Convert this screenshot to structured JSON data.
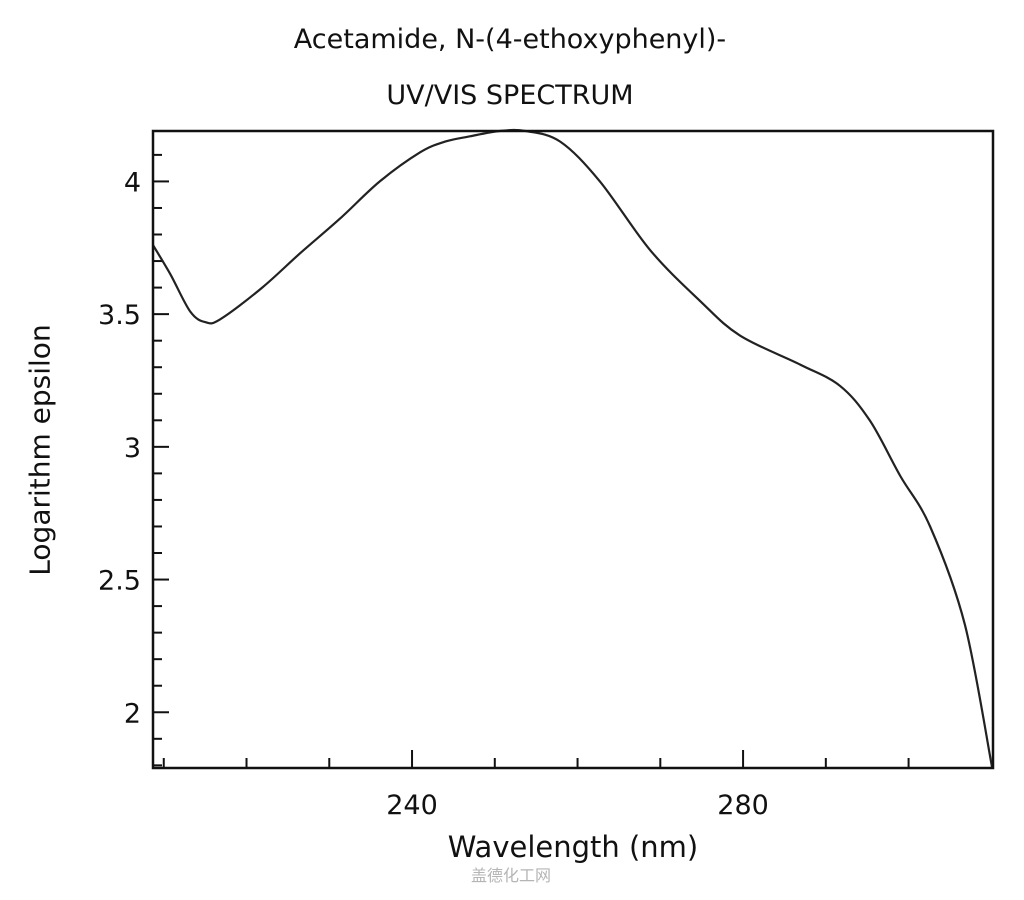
{
  "title": {
    "line1": "Acetamide, N-(4-ethoxyphenyl)-",
    "line2": "UV/VIS SPECTRUM"
  },
  "axes": {
    "xlabel": "Wavelength (nm)",
    "ylabel": "Logarithm epsilon"
  },
  "watermark": "盖德化工网",
  "chart_data": {
    "type": "line",
    "title": "Acetamide, N-(4-ethoxyphenyl)- UV/VIS SPECTRUM",
    "xlabel": "Wavelength (nm)",
    "ylabel": "Logarithm epsilon",
    "xlim": [
      208.7,
      310.2
    ],
    "ylim": [
      1.79,
      4.19
    ],
    "x_major_ticks": [
      240,
      280
    ],
    "x_minor_ticks": [
      210,
      220,
      230,
      250,
      260,
      270,
      290,
      300
    ],
    "y_major_ticks": [
      2,
      2.5,
      3,
      3.5,
      4
    ],
    "y_tick_labels": [
      "2",
      "2.5",
      "3",
      "3.5",
      "4"
    ],
    "y_minor_step": 0.1,
    "grid": false,
    "legend": null,
    "series": [
      {
        "name": "log epsilon",
        "color": "#222222",
        "x": [
          208.7,
          210.8,
          213.2,
          215.0,
          216.8,
          221.9,
          226.5,
          231.3,
          236.1,
          241.0,
          244.0,
          247.0,
          250.6,
          253.7,
          257.9,
          262.7,
          268.8,
          274.8,
          279.6,
          286.9,
          291.7,
          295.3,
          299.0,
          302.6,
          306.8,
          310.1
        ],
        "y": [
          3.76,
          3.65,
          3.51,
          3.47,
          3.48,
          3.6,
          3.73,
          3.86,
          4.0,
          4.11,
          4.15,
          4.17,
          4.19,
          4.19,
          4.15,
          4.0,
          3.74,
          3.55,
          3.42,
          3.31,
          3.23,
          3.1,
          2.89,
          2.7,
          2.33,
          1.79
        ]
      }
    ]
  }
}
